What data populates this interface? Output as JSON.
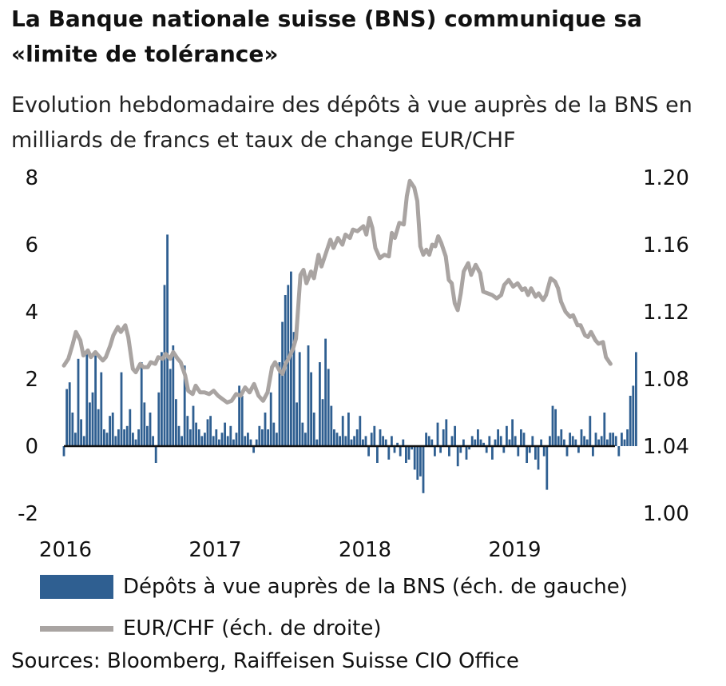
{
  "title": "La Banque nationale suisse (BNS) communique sa «limite de tolérance»",
  "subtitle": "Evolution hebdomadaire des dépôts à vue auprès de la BNS en milliards de francs et taux de change EUR/CHF",
  "source": "Sources: Bloomberg, Raiffeisen Suisse CIO Office",
  "colors": {
    "deposits": "#2f5f91",
    "eurchf": "#a9a4a2",
    "axis": "#111111"
  },
  "chart_data": {
    "type": "bar",
    "title": "La Banque nationale suisse (BNS) communique sa «limite de tolérance»",
    "x_range": [
      2016.0,
      2019.68
    ],
    "x_ticks": [
      {
        "value": 2016,
        "label": "2016"
      },
      {
        "value": 2017,
        "label": "2017"
      },
      {
        "value": 2018,
        "label": "2018"
      },
      {
        "value": 2019,
        "label": "2019"
      }
    ],
    "y_left": {
      "range": [
        -2,
        8
      ],
      "ticks": [
        -2,
        0,
        2,
        4,
        6,
        8
      ],
      "labels": [
        "-2",
        "0",
        "2",
        "4",
        "6",
        "8"
      ]
    },
    "y_right": {
      "range": [
        1.0,
        1.2
      ],
      "ticks": [
        1.0,
        1.04,
        1.08,
        1.12,
        1.16,
        1.2
      ],
      "labels": [
        "1.00",
        "1.04",
        "1.08",
        "1.12",
        "1.16",
        "1.20"
      ]
    },
    "grid": false,
    "legend_position": "bottom",
    "series": [
      {
        "name": "Dépôts à vue auprès de la BNS (éch. de gauche)",
        "type": "bar",
        "axis": "left",
        "x_start": 2016.0,
        "x_step": 0.0192,
        "values": [
          -0.3,
          1.7,
          1.9,
          1.0,
          0.4,
          2.6,
          0.8,
          0.3,
          2.8,
          1.3,
          1.6,
          2.7,
          1.1,
          2.2,
          0.5,
          0.4,
          0.9,
          1.0,
          0.3,
          0.5,
          2.2,
          0.5,
          0.6,
          1.1,
          0.4,
          0.2,
          0.5,
          2.5,
          1.3,
          0.6,
          1.0,
          0.3,
          -0.5,
          1.6,
          2.8,
          4.8,
          6.3,
          2.3,
          3.0,
          1.4,
          0.6,
          0.3,
          2.4,
          0.9,
          0.5,
          1.2,
          0.7,
          0.5,
          0.3,
          0.4,
          0.8,
          0.9,
          0.3,
          0.5,
          0.2,
          0.4,
          0.7,
          0.3,
          0.6,
          0.2,
          0.4,
          1.8,
          1.5,
          0.3,
          0.4,
          0.2,
          -0.2,
          0.2,
          0.6,
          0.5,
          1.0,
          0.5,
          1.6,
          0.7,
          0.4,
          2.5,
          3.7,
          4.5,
          4.8,
          5.2,
          3.4,
          1.3,
          2.8,
          0.7,
          0.4,
          3.0,
          2.2,
          1.0,
          0.2,
          2.5,
          1.4,
          3.2,
          2.3,
          1.2,
          0.5,
          0.4,
          0.3,
          0.9,
          0.3,
          1.0,
          0.2,
          0.3,
          0.5,
          0.9,
          0.2,
          0.3,
          -0.3,
          0.4,
          0.6,
          -0.5,
          0.5,
          0.3,
          0.2,
          -0.4,
          0.3,
          -0.2,
          0.1,
          -0.3,
          0.2,
          -0.5,
          -0.4,
          -0.1,
          -0.7,
          -1.0,
          -0.9,
          -1.4,
          0.4,
          0.3,
          0.2,
          -0.3,
          0.7,
          -0.2,
          0.5,
          0.8,
          -0.3,
          0.3,
          0.6,
          -0.6,
          -0.2,
          0.2,
          -0.4,
          -0.1,
          0.3,
          0.2,
          0.5,
          0.2,
          0.1,
          -0.2,
          0.3,
          -0.4,
          0.2,
          0.5,
          0.3,
          -0.2,
          0.6,
          0.2,
          0.8,
          0.3,
          -0.3,
          0.5,
          0.4,
          -0.5,
          -0.2,
          0.3,
          -0.4,
          -0.7,
          0.2,
          -0.3,
          -1.3,
          0.3,
          1.2,
          1.1,
          0.3,
          0.5,
          0.2,
          -0.3,
          0.4,
          0.3,
          0.2,
          -0.2,
          0.5,
          0.3,
          0.2,
          0.9,
          -0.3,
          0.4,
          0.2,
          0.3,
          1.0,
          0.2,
          0.4,
          0.4,
          0.3,
          -0.3,
          0.4,
          0.2,
          0.5,
          1.5,
          1.8,
          2.8
        ]
      },
      {
        "name": "EUR/CHF (éch. de droite)",
        "type": "line",
        "axis": "right",
        "points": [
          [
            2016.0,
            1.088
          ],
          [
            2016.03,
            1.092
          ],
          [
            2016.06,
            1.101
          ],
          [
            2016.08,
            1.108
          ],
          [
            2016.11,
            1.103
          ],
          [
            2016.13,
            1.094
          ],
          [
            2016.16,
            1.097
          ],
          [
            2016.18,
            1.093
          ],
          [
            2016.21,
            1.096
          ],
          [
            2016.23,
            1.094
          ],
          [
            2016.26,
            1.091
          ],
          [
            2016.28,
            1.093
          ],
          [
            2016.31,
            1.1
          ],
          [
            2016.33,
            1.106
          ],
          [
            2016.36,
            1.111
          ],
          [
            2016.38,
            1.108
          ],
          [
            2016.41,
            1.112
          ],
          [
            2016.43,
            1.105
          ],
          [
            2016.46,
            1.086
          ],
          [
            2016.48,
            1.084
          ],
          [
            2016.51,
            1.089
          ],
          [
            2016.53,
            1.087
          ],
          [
            2016.56,
            1.087
          ],
          [
            2016.58,
            1.09
          ],
          [
            2016.61,
            1.089
          ],
          [
            2016.63,
            1.093
          ],
          [
            2016.66,
            1.092
          ],
          [
            2016.68,
            1.095
          ],
          [
            2016.71,
            1.092
          ],
          [
            2016.73,
            1.096
          ],
          [
            2016.76,
            1.092
          ],
          [
            2016.78,
            1.09
          ],
          [
            2016.81,
            1.082
          ],
          [
            2016.83,
            1.073
          ],
          [
            2016.86,
            1.071
          ],
          [
            2016.88,
            1.076
          ],
          [
            2016.91,
            1.072
          ],
          [
            2016.94,
            1.072
          ],
          [
            2016.97,
            1.071
          ],
          [
            2017.0,
            1.073
          ],
          [
            2017.03,
            1.07
          ],
          [
            2017.06,
            1.068
          ],
          [
            2017.09,
            1.066
          ],
          [
            2017.12,
            1.067
          ],
          [
            2017.15,
            1.071
          ],
          [
            2017.18,
            1.07
          ],
          [
            2017.21,
            1.075
          ],
          [
            2017.24,
            1.072
          ],
          [
            2017.27,
            1.077
          ],
          [
            2017.3,
            1.07
          ],
          [
            2017.33,
            1.067
          ],
          [
            2017.36,
            1.072
          ],
          [
            2017.39,
            1.087
          ],
          [
            2017.41,
            1.09
          ],
          [
            2017.44,
            1.085
          ],
          [
            2017.46,
            1.083
          ],
          [
            2017.48,
            1.089
          ],
          [
            2017.5,
            1.092
          ],
          [
            2017.53,
            1.098
          ],
          [
            2017.55,
            1.104
          ],
          [
            2017.58,
            1.142
          ],
          [
            2017.6,
            1.145
          ],
          [
            2017.62,
            1.137
          ],
          [
            2017.65,
            1.144
          ],
          [
            2017.67,
            1.14
          ],
          [
            2017.7,
            1.154
          ],
          [
            2017.72,
            1.147
          ],
          [
            2017.75,
            1.155
          ],
          [
            2017.78,
            1.163
          ],
          [
            2017.8,
            1.158
          ],
          [
            2017.83,
            1.164
          ],
          [
            2017.86,
            1.16
          ],
          [
            2017.88,
            1.166
          ],
          [
            2017.91,
            1.164
          ],
          [
            2017.93,
            1.169
          ],
          [
            2017.96,
            1.168
          ],
          [
            2018.0,
            1.171
          ],
          [
            2018.02,
            1.166
          ],
          [
            2018.04,
            1.176
          ],
          [
            2018.06,
            1.17
          ],
          [
            2018.08,
            1.158
          ],
          [
            2018.11,
            1.152
          ],
          [
            2018.14,
            1.154
          ],
          [
            2018.17,
            1.153
          ],
          [
            2018.19,
            1.167
          ],
          [
            2018.21,
            1.164
          ],
          [
            2018.24,
            1.173
          ],
          [
            2018.27,
            1.172
          ],
          [
            2018.29,
            1.189
          ],
          [
            2018.31,
            1.198
          ],
          [
            2018.34,
            1.194
          ],
          [
            2018.36,
            1.186
          ],
          [
            2018.38,
            1.159
          ],
          [
            2018.4,
            1.154
          ],
          [
            2018.42,
            1.157
          ],
          [
            2018.44,
            1.154
          ],
          [
            2018.46,
            1.16
          ],
          [
            2018.48,
            1.159
          ],
          [
            2018.5,
            1.165
          ],
          [
            2018.52,
            1.161
          ],
          [
            2018.55,
            1.153
          ],
          [
            2018.57,
            1.139
          ],
          [
            2018.59,
            1.137
          ],
          [
            2018.61,
            1.125
          ],
          [
            2018.63,
            1.121
          ],
          [
            2018.65,
            1.131
          ],
          [
            2018.67,
            1.144
          ],
          [
            2018.7,
            1.149
          ],
          [
            2018.72,
            1.142
          ],
          [
            2018.75,
            1.148
          ],
          [
            2018.78,
            1.143
          ],
          [
            2018.8,
            1.132
          ],
          [
            2018.83,
            1.131
          ],
          [
            2018.86,
            1.13
          ],
          [
            2018.89,
            1.128
          ],
          [
            2018.92,
            1.13
          ],
          [
            2018.94,
            1.136
          ],
          [
            2018.97,
            1.139
          ],
          [
            2019.0,
            1.135
          ],
          [
            2019.03,
            1.137
          ],
          [
            2019.06,
            1.133
          ],
          [
            2019.08,
            1.134
          ],
          [
            2019.1,
            1.13
          ],
          [
            2019.12,
            1.134
          ],
          [
            2019.15,
            1.129
          ],
          [
            2019.17,
            1.131
          ],
          [
            2019.2,
            1.127
          ],
          [
            2019.22,
            1.13
          ],
          [
            2019.25,
            1.14
          ],
          [
            2019.28,
            1.138
          ],
          [
            2019.3,
            1.134
          ],
          [
            2019.32,
            1.126
          ],
          [
            2019.35,
            1.12
          ],
          [
            2019.38,
            1.117
          ],
          [
            2019.4,
            1.118
          ],
          [
            2019.43,
            1.112
          ],
          [
            2019.45,
            1.112
          ],
          [
            2019.48,
            1.106
          ],
          [
            2019.5,
            1.105
          ],
          [
            2019.52,
            1.108
          ],
          [
            2019.55,
            1.103
          ],
          [
            2019.57,
            1.101
          ],
          [
            2019.6,
            1.102
          ],
          [
            2019.62,
            1.093
          ],
          [
            2019.65,
            1.089
          ]
        ]
      }
    ]
  },
  "legend": {
    "deposits_label": "Dépôts à vue auprès de la BNS (éch. de gauche)",
    "eurchf_label": "EUR/CHF (éch. de droite)"
  }
}
